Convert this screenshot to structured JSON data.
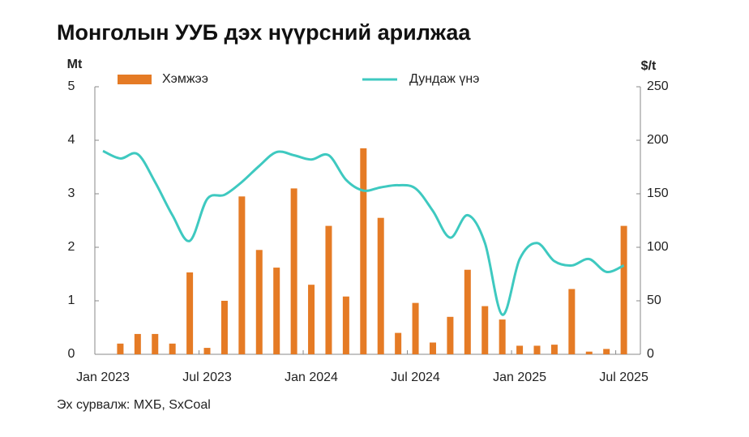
{
  "chart_data": {
    "type": "combo",
    "title": "Монголын УУБ дэх нүүрсний арилжаа",
    "y_label": "Mt",
    "y2_label": "$/t",
    "source": "Эх сурвалж: МХБ, SxCoal",
    "categories": [
      "Jan 2023",
      null,
      null,
      null,
      null,
      null,
      "Jul 2023",
      null,
      null,
      null,
      null,
      null,
      "Jan 2024",
      null,
      null,
      null,
      null,
      null,
      "Jul 2024",
      null,
      null,
      null,
      null,
      null,
      "Jan 2025",
      null,
      null,
      null,
      null,
      null,
      "Jul 2025"
    ],
    "series": [
      {
        "name": "Хэмжээ",
        "type": "bar",
        "color": "#e57b25",
        "values": [
          null,
          0.2,
          0.38,
          0.38,
          0.2,
          1.53,
          0.12,
          1.0,
          2.95,
          1.95,
          1.62,
          3.1,
          1.3,
          2.4,
          1.08,
          3.85,
          2.55,
          0.4,
          0.96,
          0.22,
          0.7,
          1.58,
          0.9,
          0.65,
          0.16,
          0.16,
          0.18,
          1.22,
          0.05,
          0.1,
          2.4
        ]
      },
      {
        "name": "Дундаж үнэ",
        "type": "line",
        "color": "#3ec9c0",
        "axis": "y2",
        "values": [
          190,
          183,
          187,
          161,
          130,
          106,
          145,
          149,
          161,
          176,
          189,
          186,
          182,
          186,
          163,
          153,
          156,
          158,
          155,
          134,
          109,
          130,
          104,
          37,
          89,
          104,
          87,
          83,
          89,
          77,
          83
        ]
      }
    ],
    "ylim": [
      0,
      5
    ],
    "yticks": [
      0,
      1,
      2,
      3,
      4,
      5
    ],
    "y2lim": [
      0,
      250
    ],
    "y2ticks": [
      0,
      50,
      100,
      150,
      200,
      250
    ],
    "grid": false
  }
}
